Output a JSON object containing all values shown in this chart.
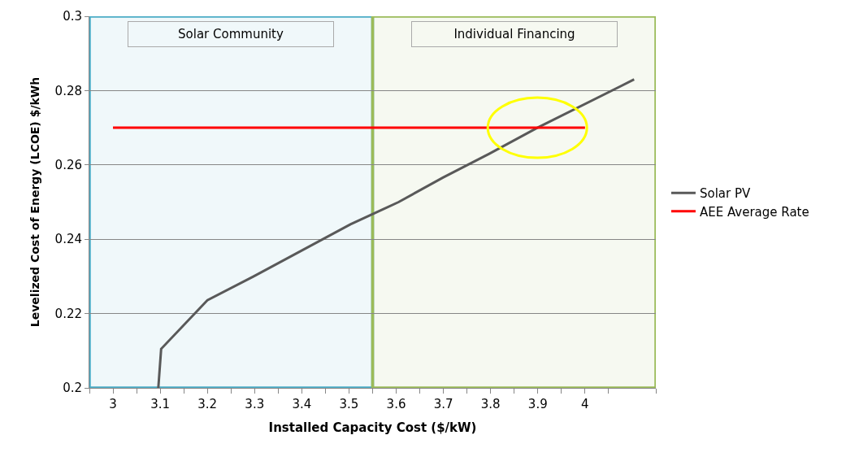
{
  "chart_data": {
    "type": "line",
    "xlabel": "Installed Capacity Cost ($/kW)",
    "ylabel": "Levelized Cost of Energy (LCOE) $/kWh",
    "series": [
      {
        "name": "Solar PV",
        "color": "#595959",
        "x": [
          3.096,
          3.102,
          3.2,
          3.298,
          3.503,
          3.605,
          3.699,
          3.797,
          3.899,
          4.104
        ],
        "values": [
          0.2,
          0.2105,
          0.2236,
          0.23,
          0.244,
          0.25,
          0.2566,
          0.263,
          0.27,
          0.283
        ]
      },
      {
        "name": "AEE Average Rate",
        "color": "#ff0000",
        "x": [
          3.0,
          4.0
        ],
        "values": [
          0.27,
          0.27
        ]
      }
    ],
    "xlim": [
      2.95,
      4.15
    ],
    "xticks": [
      3,
      3.1,
      3.2,
      3.3,
      3.4,
      3.5,
      3.6,
      3.7,
      3.8,
      3.9,
      4,
      {
        "value": 2.95,
        "label": null
      },
      {
        "value": 3.05,
        "label": null
      },
      {
        "value": 3.15,
        "label": null
      },
      {
        "value": 3.25,
        "label": null
      },
      {
        "value": 3.35,
        "label": null
      },
      {
        "value": 3.45,
        "label": null
      },
      {
        "value": 3.55,
        "label": null
      },
      {
        "value": 3.65,
        "label": null
      },
      {
        "value": 3.75,
        "label": null
      },
      {
        "value": 3.85,
        "label": null
      },
      {
        "value": 3.95,
        "label": null
      },
      {
        "value": 4.05,
        "label": null
      },
      {
        "value": 4.15,
        "label": null
      }
    ],
    "ylim": [
      0.2,
      0.3
    ],
    "yticks": [
      0.2,
      0.22,
      0.24,
      0.26,
      0.28,
      0.3
    ],
    "bands": [
      {
        "axis": "x",
        "from": 2.95,
        "to": 3.55,
        "label": "Solar Community",
        "color": "#4bacc6"
      },
      {
        "axis": "x",
        "from": 3.55,
        "to": 4.15,
        "label": "Individual Financing",
        "color": "#9bbb59"
      }
    ],
    "grid": "y",
    "legend": "right",
    "line_style": "solid",
    "marker": "none"
  }
}
